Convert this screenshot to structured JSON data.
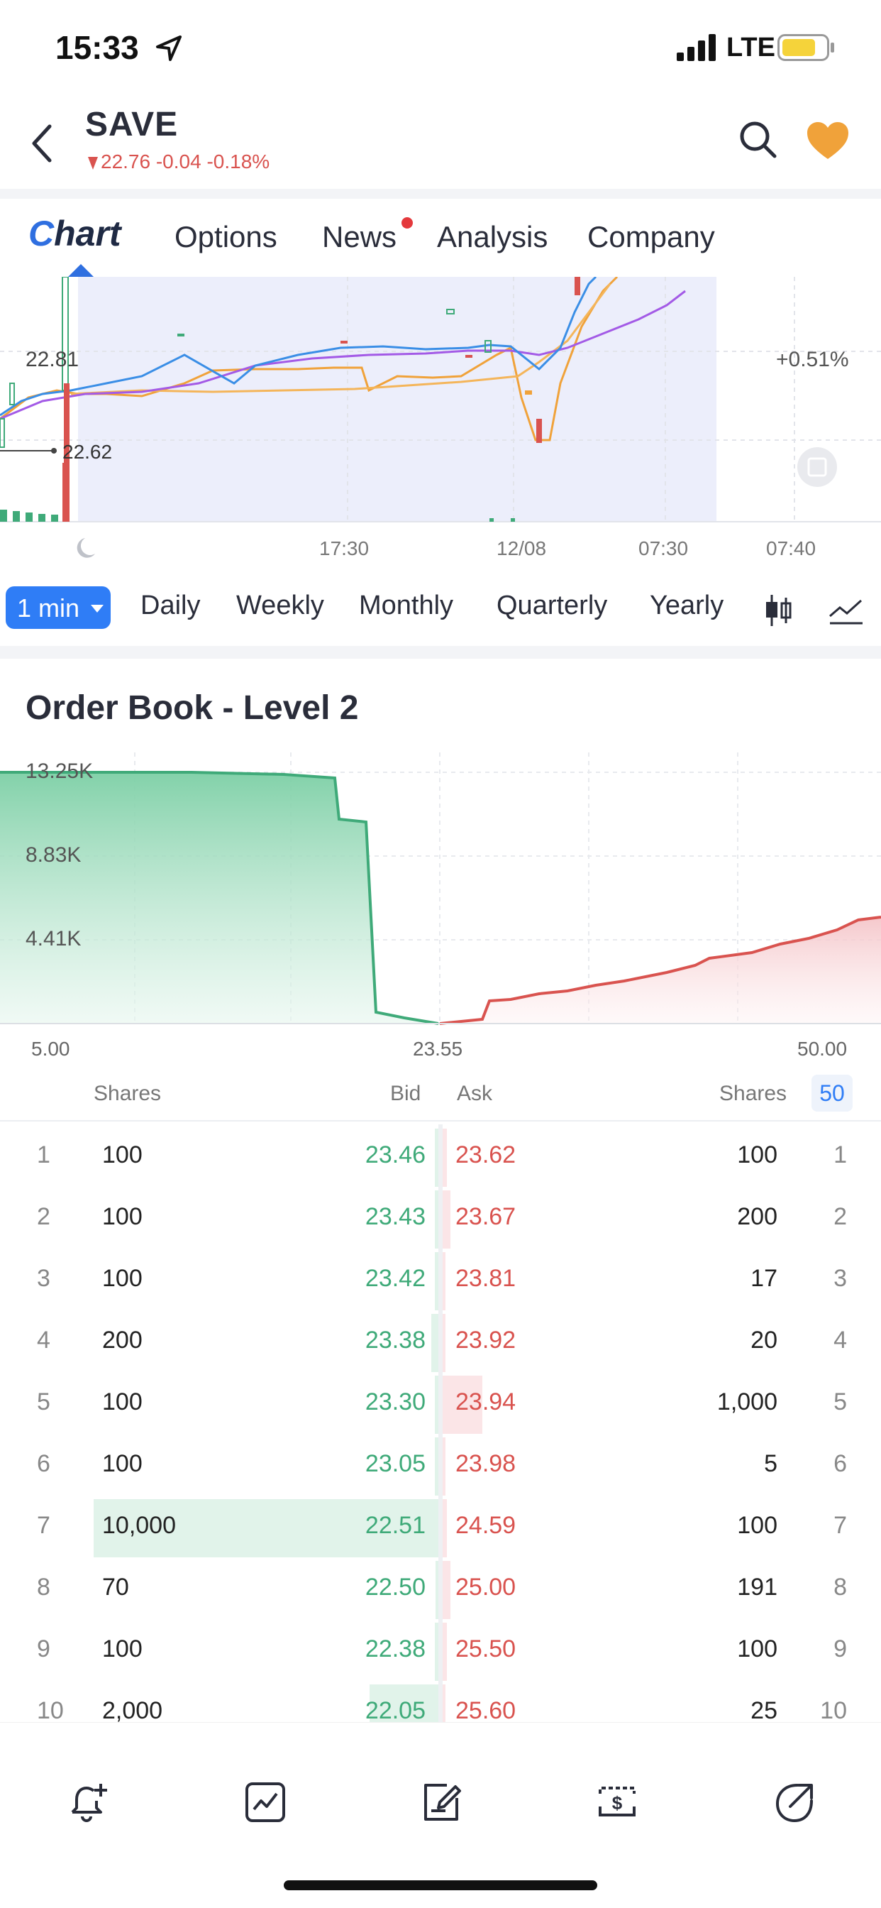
{
  "status_bar": {
    "time": "15:33",
    "network": "LTE"
  },
  "header": {
    "ticker": "SAVE",
    "price": "22.76",
    "change": "-0.04",
    "change_pct": "-0.18%",
    "accent_color": "#f0a23a",
    "down_color": "#d9534f"
  },
  "tabs": {
    "logo": "Chart",
    "logo_initial": "C",
    "logo_rest": "hart",
    "items": [
      "Options",
      "News",
      "Analysis",
      "Company"
    ]
  },
  "chart": {
    "price_label_high": "22.81",
    "price_label_low": "22.62",
    "change_label": "+0.51%",
    "time_labels": [
      "17:30",
      "12/08",
      "07:30",
      "07:40"
    ]
  },
  "periods": {
    "active": "1 min",
    "items": [
      "Daily",
      "Weekly",
      "Monthly",
      "Quarterly",
      "Yearly"
    ]
  },
  "order_book": {
    "title": "Order Book - Level 2",
    "depth_y_labels": [
      "13.25K",
      "8.83K",
      "4.41K"
    ],
    "depth_x_labels": [
      "5.00",
      "23.55",
      "50.00"
    ],
    "headers": {
      "bid_shares": "Shares",
      "bid": "Bid",
      "ask": "Ask",
      "ask_shares": "Shares",
      "depth": "50"
    },
    "rows": [
      {
        "n": "1",
        "bid_shares": "100",
        "bid": "23.46",
        "ask": "23.62",
        "ask_shares": "100",
        "bid_fill": 0.01,
        "ask_fill": 0.01
      },
      {
        "n": "2",
        "bid_shares": "100",
        "bid": "23.43",
        "ask": "23.67",
        "ask_shares": "200",
        "bid_fill": 0.01,
        "ask_fill": 0.02
      },
      {
        "n": "3",
        "bid_shares": "100",
        "bid": "23.42",
        "ask": "23.81",
        "ask_shares": "17",
        "bid_fill": 0.01,
        "ask_fill": 0.005
      },
      {
        "n": "4",
        "bid_shares": "200",
        "bid": "23.38",
        "ask": "23.92",
        "ask_shares": "20",
        "bid_fill": 0.02,
        "ask_fill": 0.005
      },
      {
        "n": "5",
        "bid_shares": "100",
        "bid": "23.30",
        "ask": "23.94",
        "ask_shares": "1,000",
        "bid_fill": 0.01,
        "ask_fill": 0.1
      },
      {
        "n": "6",
        "bid_shares": "100",
        "bid": "23.05",
        "ask": "23.98",
        "ask_shares": "5",
        "bid_fill": 0.01,
        "ask_fill": 0.003
      },
      {
        "n": "7",
        "bid_shares": "10,000",
        "bid": "22.51",
        "ask": "24.59",
        "ask_shares": "100",
        "bid_fill": 1.0,
        "ask_fill": 0.01
      },
      {
        "n": "8",
        "bid_shares": "70",
        "bid": "22.50",
        "ask": "25.00",
        "ask_shares": "191",
        "bid_fill": 0.007,
        "ask_fill": 0.02
      },
      {
        "n": "9",
        "bid_shares": "100",
        "bid": "22.38",
        "ask": "25.50",
        "ask_shares": "100",
        "bid_fill": 0.01,
        "ask_fill": 0.01
      },
      {
        "n": "10",
        "bid_shares": "2,000",
        "bid": "22.05",
        "ask": "25.60",
        "ask_shares": "25",
        "bid_fill": 0.2,
        "ask_fill": 0.003
      }
    ]
  },
  "bottom_bar": {
    "icons": [
      "add-alert-icon",
      "trend-chart-icon",
      "edit-note-icon",
      "dollar-trade-icon",
      "share-icon"
    ]
  }
}
